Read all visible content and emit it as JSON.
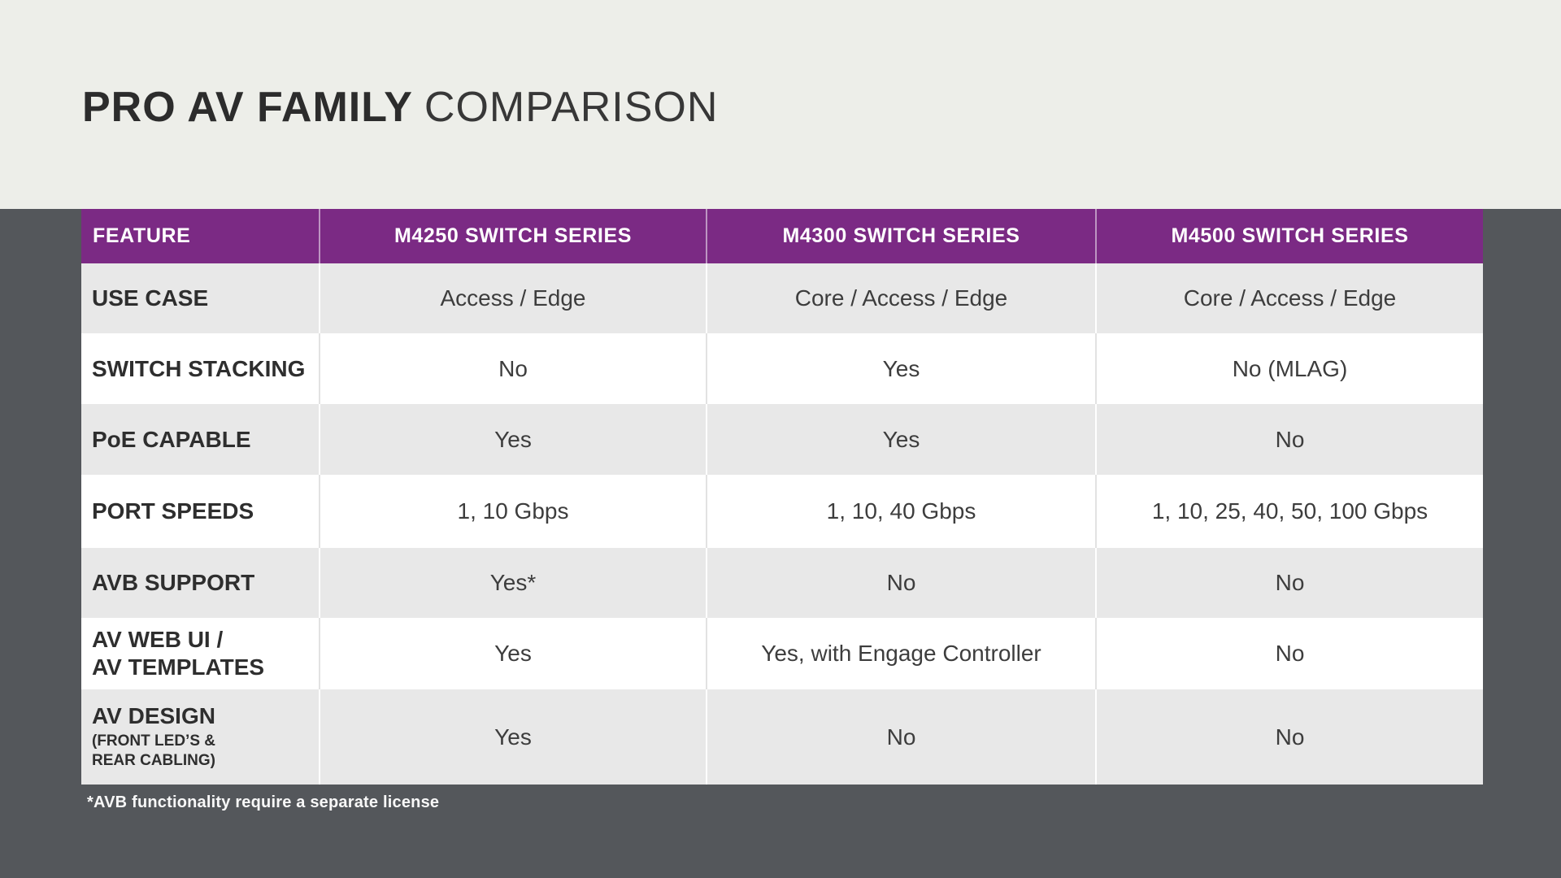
{
  "slide": {
    "title": {
      "bold": "PRO AV FAMILY",
      "light": "COMPARISON"
    },
    "footnote": "*AVB functionality require a separate license"
  },
  "colors": {
    "header_purple": "#7B2A84",
    "top_band_cream": "#EDEEE9",
    "background_dark": "#54575B",
    "row_gray": "#E8E8E8",
    "row_white": "#FFFFFF",
    "header_text": "#FFFFFF",
    "body_text": "#3D3D3D"
  },
  "table": {
    "columns": [
      "FEATURE",
      "M4250 SWITCH SERIES",
      "M4300 SWITCH SERIES",
      "M4500 SWITCH SERIES"
    ],
    "rows": [
      {
        "label": "USE CASE",
        "values": [
          "Access / Edge",
          "Core / Access / Edge",
          "Core / Access / Edge"
        ]
      },
      {
        "label": "SWITCH STACKING",
        "values": [
          "No",
          "Yes",
          "No (MLAG)"
        ]
      },
      {
        "label": "PoE CAPABLE",
        "values": [
          "Yes",
          "Yes",
          "No"
        ]
      },
      {
        "label": "PORT SPEEDS",
        "values": [
          "1, 10 Gbps",
          "1, 10, 40 Gbps",
          "1, 10, 25, 40, 50, 100 Gbps"
        ]
      },
      {
        "label": "AVB SUPPORT",
        "values": [
          "Yes*",
          "No",
          "No"
        ]
      },
      {
        "label": "AV WEB UI /\nAV TEMPLATES",
        "values": [
          "Yes",
          "Yes, with Engage Controller",
          "No"
        ]
      },
      {
        "label": "AV DESIGN",
        "sublabel": "(FRONT LED’S &\nREAR CABLING)",
        "values": [
          "Yes",
          "No",
          "No"
        ]
      }
    ]
  }
}
